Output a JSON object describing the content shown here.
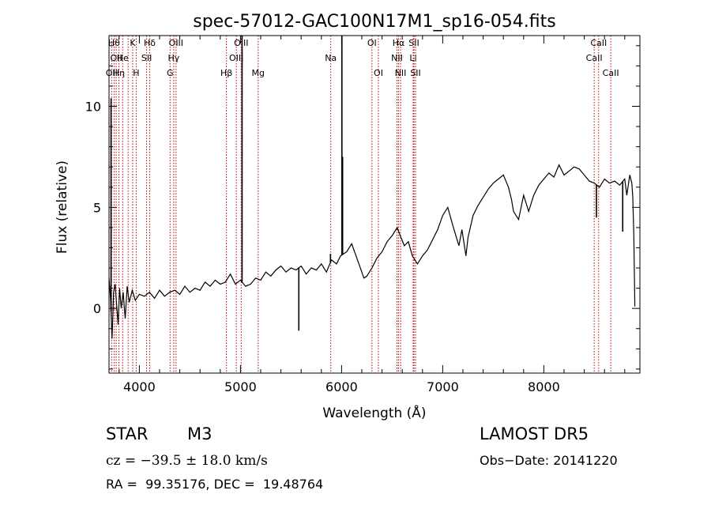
{
  "chart_data": {
    "type": "line",
    "title": "spec-57012-GAC100N17M1_sp16-054.fits",
    "xlabel": "Wavelength (Å)",
    "ylabel": "Flux (relative)",
    "xlim": [
      3700,
      8950
    ],
    "ylim": [
      -3.2,
      13.5
    ],
    "xticks": [
      4000,
      5000,
      6000,
      7000,
      8000
    ],
    "yticks": [
      0,
      5,
      10
    ],
    "grid": false,
    "series": [
      {
        "x": [
          3700,
          3715,
          3730,
          3745,
          3760,
          3775,
          3790,
          3805,
          3820,
          3840,
          3860,
          3880,
          3900,
          3930,
          3960,
          4000,
          4050,
          4100,
          4150,
          4200,
          4250,
          4300,
          4350,
          4400,
          4450,
          4500,
          4550,
          4600,
          4650,
          4700,
          4750,
          4800,
          4850,
          4900,
          4950,
          5000,
          5050,
          5100,
          5150,
          5200,
          5250,
          5300,
          5350,
          5400,
          5450,
          5500,
          5550,
          5600,
          5650,
          5700,
          5750,
          5800,
          5850,
          5900,
          5950,
          5990,
          6050,
          6100,
          6150,
          6200,
          6220,
          6250,
          6300,
          6350,
          6400,
          6450,
          6500,
          6550,
          6580,
          6620,
          6660,
          6700,
          6750,
          6800,
          6850,
          6900,
          6950,
          7000,
          7050,
          7100,
          7130,
          7160,
          7190,
          7230,
          7250,
          7300,
          7350,
          7400,
          7450,
          7500,
          7550,
          7600,
          7650,
          7680,
          7700,
          7750,
          7800,
          7850,
          7900,
          7950,
          8000,
          8050,
          8100,
          8150,
          8200,
          8250,
          8300,
          8350,
          8400,
          8450,
          8500,
          8550,
          8600,
          8650,
          8700,
          8750,
          8800,
          8820,
          8850,
          8870,
          8880,
          8890,
          8900
        ],
        "y": [
          1.5,
          0.5,
          -1.5,
          0.8,
          1.2,
          0.2,
          -0.8,
          1.0,
          0.0,
          0.8,
          -0.5,
          1.1,
          0.3,
          0.9,
          0.4,
          0.7,
          0.6,
          0.8,
          0.5,
          0.9,
          0.6,
          0.8,
          0.9,
          0.7,
          1.1,
          0.8,
          1.0,
          0.9,
          1.3,
          1.1,
          1.4,
          1.2,
          1.3,
          1.7,
          1.2,
          1.4,
          1.1,
          1.2,
          1.5,
          1.4,
          1.8,
          1.6,
          1.9,
          2.1,
          1.8,
          2.0,
          1.9,
          2.1,
          1.7,
          2.0,
          1.9,
          2.2,
          1.8,
          2.4,
          2.2,
          2.6,
          2.8,
          3.2,
          2.5,
          1.8,
          1.5,
          1.6,
          2.0,
          2.5,
          2.8,
          3.3,
          3.6,
          4.0,
          3.6,
          3.1,
          3.3,
          2.6,
          2.2,
          2.6,
          2.9,
          3.4,
          3.9,
          4.6,
          5.0,
          4.1,
          3.6,
          3.1,
          3.9,
          2.6,
          3.5,
          4.6,
          5.1,
          5.5,
          5.9,
          6.2,
          6.4,
          6.6,
          6.0,
          5.4,
          4.8,
          4.4,
          5.6,
          4.8,
          5.6,
          6.1,
          6.4,
          6.7,
          6.5,
          7.1,
          6.6,
          6.8,
          7.0,
          6.9,
          6.6,
          6.3,
          6.2,
          6.0,
          6.4,
          6.2,
          6.3,
          6.1,
          6.4,
          5.6,
          6.6,
          6.2,
          5.5,
          3.6,
          0.1
        ],
        "spikes": [
          {
            "x": 3720,
            "y": 10.4
          },
          {
            "x": 5016,
            "y": 13.5
          },
          {
            "x": 5577,
            "y": -1.1
          },
          {
            "x": 5890,
            "y": 2.7
          },
          {
            "x": 6003,
            "y": 13.5
          },
          {
            "x": 6010,
            "y": 7.5
          },
          {
            "x": 8520,
            "y": 4.5
          },
          {
            "x": 8780,
            "y": 3.8
          }
        ]
      }
    ],
    "lines": [
      {
        "x": 3726,
        "label": "OII",
        "row": 3
      },
      {
        "x": 3750,
        "label": "Hθ",
        "row": 1
      },
      {
        "x": 3771,
        "label": "OII",
        "row": 2
      },
      {
        "x": 3798,
        "label": "Hη",
        "row": 3
      },
      {
        "x": 3835,
        "label": "He",
        "row": 2
      },
      {
        "x": 3889,
        "label": "",
        "row": 0
      },
      {
        "x": 3934,
        "label": "K",
        "row": 1
      },
      {
        "x": 3969,
        "label": "H",
        "row": 3
      },
      {
        "x": 4072,
        "label": "SII",
        "row": 2
      },
      {
        "x": 4102,
        "label": "Hδ",
        "row": 1
      },
      {
        "x": 4304,
        "label": "G",
        "row": 3
      },
      {
        "x": 4340,
        "label": "Hγ",
        "row": 2
      },
      {
        "x": 4363,
        "label": "OIII",
        "row": 1
      },
      {
        "x": 4861,
        "label": "Hβ",
        "row": 3
      },
      {
        "x": 4959,
        "label": "OIII",
        "row": 2
      },
      {
        "x": 5007,
        "label": "OIII",
        "row": 1
      },
      {
        "x": 5175,
        "label": "Mg",
        "row": 3
      },
      {
        "x": 5893,
        "label": "Na",
        "row": 2
      },
      {
        "x": 6300,
        "label": "OI",
        "row": 1
      },
      {
        "x": 6364,
        "label": "OI",
        "row": 3
      },
      {
        "x": 6548,
        "label": "NII",
        "row": 2
      },
      {
        "x": 6563,
        "label": "Hα",
        "row": 1
      },
      {
        "x": 6583,
        "label": "NII",
        "row": 3
      },
      {
        "x": 6708,
        "label": "Li",
        "row": 2
      },
      {
        "x": 6716,
        "label": "SII",
        "row": 1
      },
      {
        "x": 6731,
        "label": "SII",
        "row": 3
      },
      {
        "x": 8498,
        "label": "CaII",
        "row": 2
      },
      {
        "x": 8542,
        "label": "CaII",
        "row": 1
      },
      {
        "x": 8662,
        "label": "CaII",
        "row": 3
      }
    ],
    "line_color": "#000000",
    "marker_color": "#c00000"
  },
  "info": {
    "object_class": "STAR",
    "subclass": "M3",
    "survey": "LAMOST DR5",
    "redshift": "cz = −39.5 ± 18.0 km/s",
    "obs_date": "Obs−Date: 20141220",
    "coordinates": "RA =  99.35176, DEC =  19.48764"
  }
}
